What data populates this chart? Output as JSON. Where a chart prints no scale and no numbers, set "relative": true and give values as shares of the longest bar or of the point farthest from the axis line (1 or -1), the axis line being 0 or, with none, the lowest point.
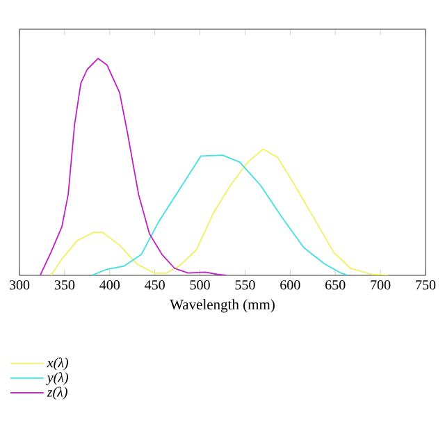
{
  "chart_data": {
    "type": "line",
    "xlabel": "Wavelength (mm)",
    "relative": true,
    "xlim": [
      300,
      750
    ],
    "xticks": [
      300,
      350,
      400,
      450,
      500,
      550,
      600,
      650,
      700,
      750
    ],
    "legend": "bottom left",
    "series": [
      {
        "name": "x(λ)",
        "color": "#f0f060",
        "x": [
          335,
          347,
          364,
          382,
          392,
          411,
          430,
          449,
          463,
          477,
          496,
          515,
          534,
          553,
          570,
          586,
          605,
          629,
          648,
          667,
          691,
          709
        ],
        "values": [
          0,
          0.075,
          0.16,
          0.198,
          0.198,
          0.139,
          0.053,
          0.011,
          0.011,
          0.043,
          0.117,
          0.288,
          0.416,
          0.522,
          0.582,
          0.544,
          0.416,
          0.245,
          0.107,
          0.032,
          0.004,
          0
        ]
      },
      {
        "name": "y(λ)",
        "color": "#40e0e0",
        "x": [
          380,
          397,
          416,
          435,
          454,
          477,
          501,
          525,
          544,
          567,
          591,
          615,
          638,
          656,
          664
        ],
        "values": [
          0,
          0.028,
          0.043,
          0.096,
          0.245,
          0.394,
          0.55,
          0.554,
          0.522,
          0.416,
          0.267,
          0.128,
          0.053,
          0.011,
          0
        ]
      },
      {
        "name": "z(λ)",
        "color": "#c020c0",
        "x": [
          323,
          335,
          347,
          354,
          361,
          368,
          375,
          387,
          397,
          411,
          420,
          432,
          444,
          458,
          472,
          487,
          506,
          520,
          529
        ],
        "values": [
          0,
          0.107,
          0.224,
          0.373,
          0.693,
          0.885,
          0.949,
          1.0,
          0.97,
          0.842,
          0.65,
          0.373,
          0.192,
          0.096,
          0.032,
          0.011,
          0.015,
          0.004,
          0
        ]
      }
    ]
  }
}
